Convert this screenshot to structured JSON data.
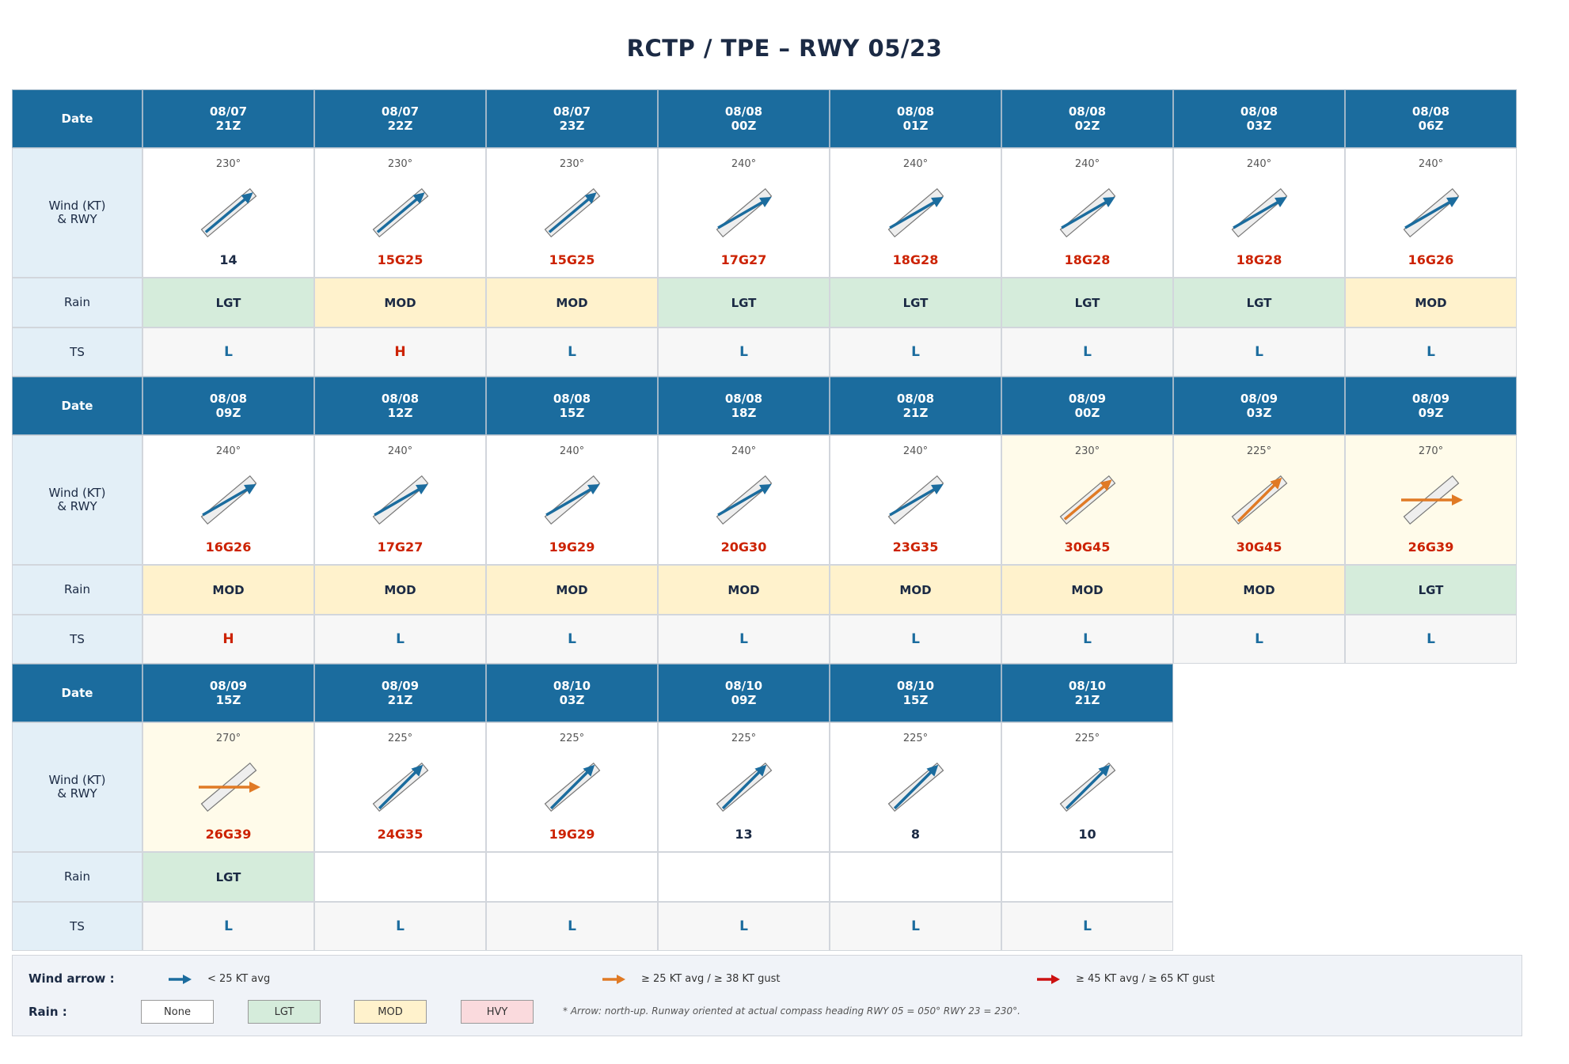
{
  "title": "RCTP / TPE  –  RWY 05/23",
  "labels": {
    "date": "Date",
    "wind": "Wind (KT)\n& RWY",
    "rain": "Rain",
    "ts": "TS"
  },
  "colors": {
    "header": "#1b6c9e",
    "arrow_blue": "#1b6c9e",
    "arrow_orange": "#e07a25",
    "arrow_red": "#cc1111",
    "speed_red": "#cc2200",
    "speed_dark": "#1b2a44",
    "ts_L": "#1b6c9e",
    "ts_H": "#cc2200",
    "rain_none": "#ffffff",
    "rain_lgt": "#d5ecdb",
    "rain_mod": "#fff2cc",
    "rain_hvy": "#fadadd",
    "highlight_bg": "#fffbea"
  },
  "runway_heading_deg": 50,
  "blocks": [
    {
      "columns": [
        {
          "date": "08/07\n21Z",
          "dir": "230°",
          "dir_deg": 230,
          "speed": "14",
          "speed_color": "dark",
          "arrow": "blue",
          "rain": "LGT",
          "ts": "L"
        },
        {
          "date": "08/07\n22Z",
          "dir": "230°",
          "dir_deg": 230,
          "speed": "15G25",
          "speed_color": "red",
          "arrow": "blue",
          "rain": "MOD",
          "ts": "H"
        },
        {
          "date": "08/07\n23Z",
          "dir": "230°",
          "dir_deg": 230,
          "speed": "15G25",
          "speed_color": "red",
          "arrow": "blue",
          "rain": "MOD",
          "ts": "L"
        },
        {
          "date": "08/08\n00Z",
          "dir": "240°",
          "dir_deg": 240,
          "speed": "17G27",
          "speed_color": "red",
          "arrow": "blue",
          "rain": "LGT",
          "ts": "L"
        },
        {
          "date": "08/08\n01Z",
          "dir": "240°",
          "dir_deg": 240,
          "speed": "18G28",
          "speed_color": "red",
          "arrow": "blue",
          "rain": "LGT",
          "ts": "L"
        },
        {
          "date": "08/08\n02Z",
          "dir": "240°",
          "dir_deg": 240,
          "speed": "18G28",
          "speed_color": "red",
          "arrow": "blue",
          "rain": "LGT",
          "ts": "L"
        },
        {
          "date": "08/08\n03Z",
          "dir": "240°",
          "dir_deg": 240,
          "speed": "18G28",
          "speed_color": "red",
          "arrow": "blue",
          "rain": "LGT",
          "ts": "L"
        },
        {
          "date": "08/08\n06Z",
          "dir": "240°",
          "dir_deg": 240,
          "speed": "16G26",
          "speed_color": "red",
          "arrow": "blue",
          "rain": "MOD",
          "ts": "L"
        }
      ]
    },
    {
      "columns": [
        {
          "date": "08/08\n09Z",
          "dir": "240°",
          "dir_deg": 240,
          "speed": "16G26",
          "speed_color": "red",
          "arrow": "blue",
          "rain": "MOD",
          "ts": "H"
        },
        {
          "date": "08/08\n12Z",
          "dir": "240°",
          "dir_deg": 240,
          "speed": "17G27",
          "speed_color": "red",
          "arrow": "blue",
          "rain": "MOD",
          "ts": "L"
        },
        {
          "date": "08/08\n15Z",
          "dir": "240°",
          "dir_deg": 240,
          "speed": "19G29",
          "speed_color": "red",
          "arrow": "blue",
          "rain": "MOD",
          "ts": "L"
        },
        {
          "date": "08/08\n18Z",
          "dir": "240°",
          "dir_deg": 240,
          "speed": "20G30",
          "speed_color": "red",
          "arrow": "blue",
          "rain": "MOD",
          "ts": "L"
        },
        {
          "date": "08/08\n21Z",
          "dir": "240°",
          "dir_deg": 240,
          "speed": "23G35",
          "speed_color": "red",
          "arrow": "blue",
          "rain": "MOD",
          "ts": "L"
        },
        {
          "date": "08/09\n00Z",
          "dir": "230°",
          "dir_deg": 230,
          "speed": "30G45",
          "speed_color": "red",
          "arrow": "orange",
          "highlight": true,
          "rain": "MOD",
          "ts": "L"
        },
        {
          "date": "08/09\n03Z",
          "dir": "225°",
          "dir_deg": 225,
          "speed": "30G45",
          "speed_color": "red",
          "arrow": "orange",
          "highlight": true,
          "rain": "MOD",
          "ts": "L"
        },
        {
          "date": "08/09\n09Z",
          "dir": "270°",
          "dir_deg": 270,
          "speed": "26G39",
          "speed_color": "red",
          "arrow": "orange",
          "highlight": true,
          "rain": "LGT",
          "ts": "L"
        }
      ]
    },
    {
      "columns": [
        {
          "date": "08/09\n15Z",
          "dir": "270°",
          "dir_deg": 270,
          "speed": "26G39",
          "speed_color": "red",
          "arrow": "orange",
          "highlight": true,
          "rain": "LGT",
          "ts": "L"
        },
        {
          "date": "08/09\n21Z",
          "dir": "225°",
          "dir_deg": 225,
          "speed": "24G35",
          "speed_color": "red",
          "arrow": "blue",
          "rain": "",
          "ts": "L"
        },
        {
          "date": "08/10\n03Z",
          "dir": "225°",
          "dir_deg": 225,
          "speed": "19G29",
          "speed_color": "red",
          "arrow": "blue",
          "rain": "",
          "ts": "L"
        },
        {
          "date": "08/10\n09Z",
          "dir": "225°",
          "dir_deg": 225,
          "speed": "13",
          "speed_color": "dark",
          "arrow": "blue",
          "rain": "",
          "ts": "L"
        },
        {
          "date": "08/10\n15Z",
          "dir": "225°",
          "dir_deg": 225,
          "speed": "8",
          "speed_color": "dark",
          "arrow": "blue",
          "rain": "",
          "ts": "L"
        },
        {
          "date": "08/10\n21Z",
          "dir": "225°",
          "dir_deg": 225,
          "speed": "10",
          "speed_color": "dark",
          "arrow": "blue",
          "rain": "",
          "ts": "L"
        }
      ]
    }
  ],
  "legend": {
    "wind_label": "Wind arrow :",
    "wind_items": [
      {
        "arrow": "blue",
        "text": "< 25 KT avg"
      },
      {
        "arrow": "orange",
        "text": "≥ 25 KT avg / ≥ 38 KT gust"
      },
      {
        "arrow": "red",
        "text": "≥ 45 KT avg / ≥ 65 KT gust"
      }
    ],
    "rain_label": "Rain :",
    "rain_items": [
      {
        "key": "none",
        "text": "None"
      },
      {
        "key": "lgt",
        "text": "LGT"
      },
      {
        "key": "mod",
        "text": "MOD"
      },
      {
        "key": "hvy",
        "text": "HVY"
      }
    ],
    "note": "* Arrow: north-up.  Runway oriented at actual compass heading  RWY 05 = 050°  RWY 23 = 230°."
  }
}
